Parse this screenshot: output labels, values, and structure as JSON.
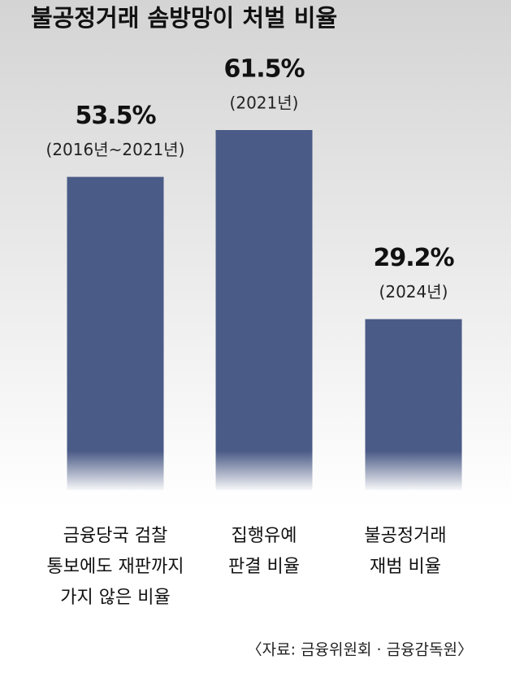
{
  "title": "불공정거래 솜방망이 처벌 비율",
  "chart_data": {
    "type": "bar",
    "categories": [
      [
        "금융당국 검찰",
        "통보에도 재판까지",
        "가지 않은 비율"
      ],
      [
        "집행유예",
        "판결 비율"
      ],
      [
        "불공정거래",
        "재범 비율"
      ]
    ],
    "values": [
      53.5,
      61.5,
      29.2
    ],
    "value_labels": [
      "53.5%",
      "61.5%",
      "29.2%"
    ],
    "periods": [
      "(2016년~2021년)",
      "(2021년)",
      "(2024년)"
    ],
    "color": "#4b5b87"
  },
  "source": "〈자료: 금융위원회 · 금융감독원〉"
}
